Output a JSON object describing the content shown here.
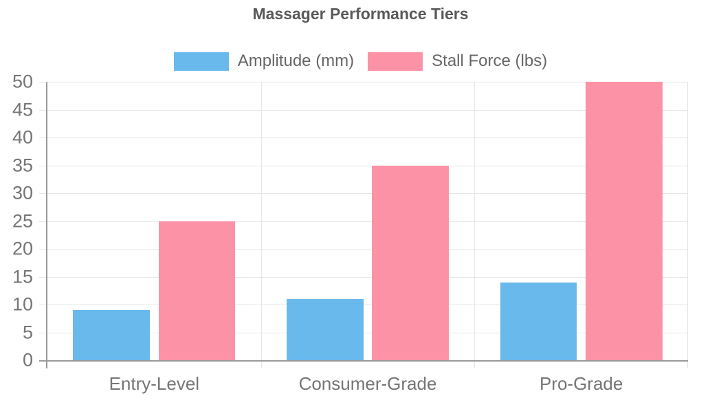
{
  "chart_data": {
    "type": "bar",
    "title": "Massager Performance Tiers",
    "categories": [
      "Entry-Level",
      "Consumer-Grade",
      "Pro-Grade"
    ],
    "series": [
      {
        "name": "Amplitude (mm)",
        "color": "#6ab9ed",
        "values": [
          9,
          11,
          14
        ]
      },
      {
        "name": "Stall Force (lbs)",
        "color": "#fc92a5",
        "values": [
          25,
          35,
          50
        ]
      }
    ],
    "xlabel": "",
    "ylabel": "",
    "ylim": [
      0,
      50
    ],
    "yticks": [
      0,
      5,
      10,
      15,
      20,
      25,
      30,
      35,
      40,
      45,
      50
    ],
    "grid": true,
    "legend_position": "top"
  },
  "style": {
    "background": "#ffffff",
    "title_color": "#595959",
    "legend_text_color": "#666666",
    "tick_label_color": "#757575",
    "axis_line_color": "#9a9a9a",
    "gridline_color": "#e6e6e6"
  }
}
